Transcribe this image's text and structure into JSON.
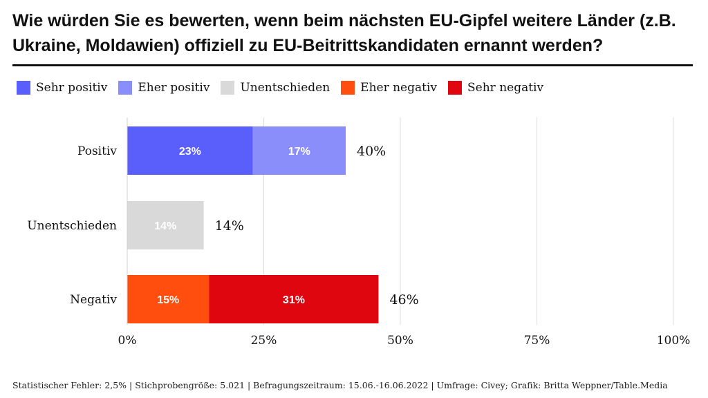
{
  "title": "Wie würden Sie es bewerten, wenn beim nächsten EU-Gipfel weitere Länder (z.B. Ukraine, Moldawien) offiziell zu EU-Beitrittskandidaten ernannt werden?",
  "footer": "Statistischer Fehler: 2,5% | Stichprobengröße: 5.021 | Befragungszeitraum: 15.06.-16.06.2022 | Umfrage: Civey; Grafik: Britta Weppner/Table.Media",
  "colors": {
    "sehr_positiv": "#5a5efb",
    "eher_positiv": "#8a8efb",
    "unentschieden": "#d9d9d9",
    "eher_negativ": "#ff4e0d",
    "sehr_negativ": "#e0060f"
  },
  "chart_data": {
    "type": "bar",
    "orientation": "horizontal",
    "stacked": true,
    "categories": [
      "Positiv",
      "Unentschieden",
      "Negativ"
    ],
    "series": [
      {
        "name": "Sehr positiv",
        "color": "#5a5efb",
        "values": [
          23,
          null,
          null
        ],
        "labels": [
          "23%",
          null,
          null
        ],
        "row": "Positiv"
      },
      {
        "name": "Eher positiv",
        "color": "#8a8efb",
        "values": [
          17,
          null,
          null
        ],
        "labels": [
          "17%",
          null,
          null
        ],
        "row": "Positiv"
      },
      {
        "name": "Unentschieden",
        "color": "#d9d9d9",
        "values": [
          null,
          14,
          null
        ],
        "labels": [
          null,
          "14%",
          null
        ],
        "row": "Unentschieden"
      },
      {
        "name": "Eher negativ",
        "color": "#ff4e0d",
        "values": [
          null,
          null,
          15
        ],
        "labels": [
          null,
          null,
          "15%"
        ],
        "row": "Negativ"
      },
      {
        "name": "Sehr negativ",
        "color": "#e0060f",
        "values": [
          null,
          null,
          31
        ],
        "labels": [
          null,
          null,
          "31%"
        ],
        "row": "Negativ"
      }
    ],
    "totals": [
      {
        "category": "Positiv",
        "label": "40%"
      },
      {
        "category": "Unentschieden",
        "label": "14%"
      },
      {
        "category": "Negativ",
        "label": "46%"
      }
    ],
    "xlim": [
      0,
      100
    ],
    "xticks": [
      0,
      25,
      50,
      75,
      100
    ],
    "xtick_labels": [
      "0%",
      "25%",
      "50%",
      "75%",
      "100%"
    ],
    "legend": [
      "Sehr positiv",
      "Eher positiv",
      "Unentschieden",
      "Eher negativ",
      "Sehr negativ"
    ],
    "legend_position": "top-left",
    "grid": true
  }
}
